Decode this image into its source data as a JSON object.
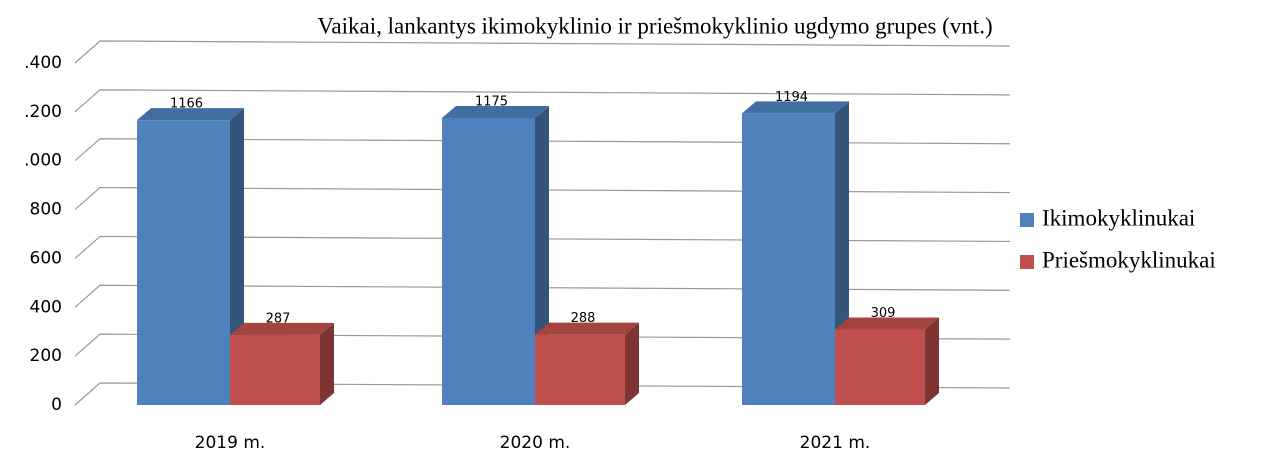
{
  "chart_data": {
    "type": "bar3d",
    "title": "Vaikai, lankantys ikimokyklinio ir priešmokyklinio ugdymo grupes (vnt.)",
    "categories": [
      "2019 m.",
      "2020 m.",
      "2021 m."
    ],
    "series": [
      {
        "name": "Ikimokyklinukai",
        "color": "#4f81bd",
        "values": [
          1166,
          1175,
          1194
        ]
      },
      {
        "name": "Priešmokyklinukai",
        "color": "#c0504d",
        "values": [
          287,
          288,
          309
        ]
      }
    ],
    "ylim": [
      0,
      1400
    ],
    "yticks": [
      0,
      200,
      400,
      600,
      800,
      {
        "value": 1000,
        "label": ".000"
      },
      {
        "value": 1200,
        "label": ".200"
      },
      {
        "value": 1400,
        "label": ".400"
      }
    ],
    "grid": true,
    "legend": "right"
  }
}
